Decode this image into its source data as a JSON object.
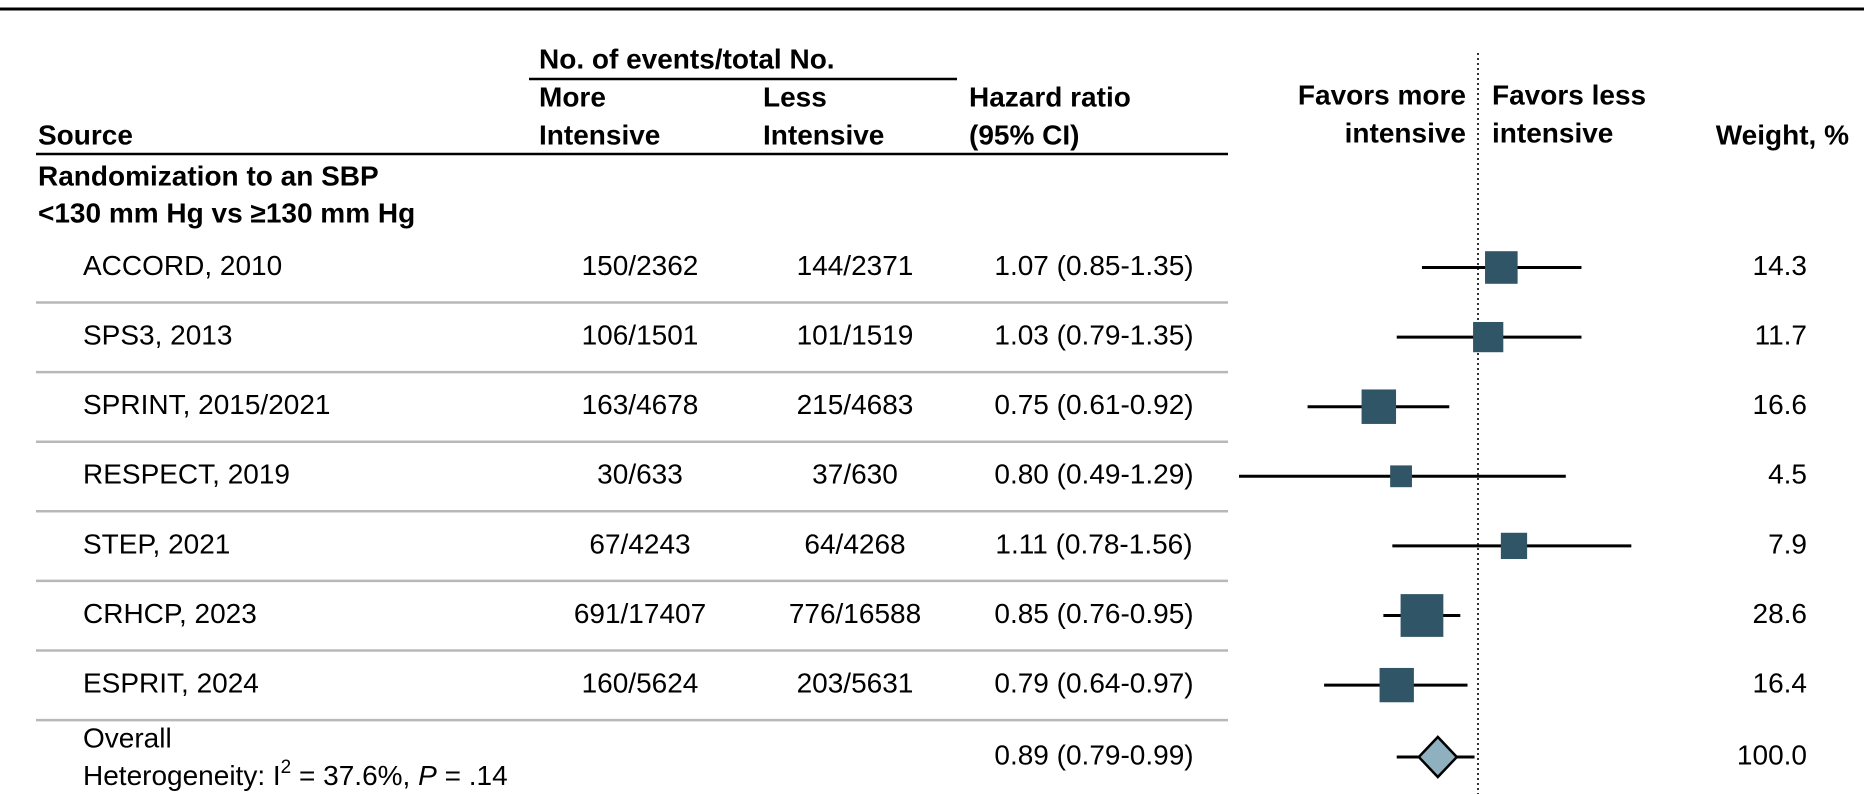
{
  "header": {
    "source": "Source",
    "events_group": "No. of events/total No.",
    "more": [
      "More",
      "Intensive"
    ],
    "less": [
      "Less",
      "Intensive"
    ],
    "hr": [
      "Hazard ratio",
      "(95% CI)"
    ],
    "favors_more": [
      "Favors more",
      "intensive"
    ],
    "favors_less": [
      "Favors less",
      "intensive"
    ],
    "weight": "Weight, %"
  },
  "section": [
    "Randomization to an SBP",
    "<130 mm Hg vs ≥130 mm Hg"
  ],
  "studies": [
    {
      "source": "ACCORD, 2010",
      "more": "150/2362",
      "less": "144/2371",
      "hr_label": "1.07 (0.85-1.35)",
      "hr": 1.07,
      "lo": 0.85,
      "hi": 1.35,
      "weight": 14.3
    },
    {
      "source": "SPS3, 2013",
      "more": "106/1501",
      "less": "101/1519",
      "hr_label": "1.03 (0.79-1.35)",
      "hr": 1.03,
      "lo": 0.79,
      "hi": 1.35,
      "weight": 11.7
    },
    {
      "source": "SPRINT, 2015/2021",
      "more": "163/4678",
      "less": "215/4683",
      "hr_label": "0.75 (0.61-0.92)",
      "hr": 0.75,
      "lo": 0.61,
      "hi": 0.92,
      "weight": 16.6
    },
    {
      "source": "RESPECT, 2019",
      "more": "30/633",
      "less": "37/630",
      "hr_label": "0.80 (0.49-1.29)",
      "hr": 0.8,
      "lo": 0.49,
      "hi": 1.29,
      "weight": 4.5
    },
    {
      "source": "STEP, 2021",
      "more": "67/4243",
      "less": "64/4268",
      "hr_label": "1.11 (0.78-1.56)",
      "hr": 1.11,
      "lo": 0.78,
      "hi": 1.56,
      "weight": 7.9
    },
    {
      "source": "CRHCP, 2023",
      "more": "691/17407",
      "less": "776/16588",
      "hr_label": "0.85 (0.76-0.95)",
      "hr": 0.85,
      "lo": 0.76,
      "hi": 0.95,
      "weight": 28.6
    },
    {
      "source": "ESPRIT, 2024",
      "more": "160/5624",
      "less": "203/5631",
      "hr_label": "0.79 (0.64-0.97)",
      "hr": 0.79,
      "lo": 0.64,
      "hi": 0.97,
      "weight": 16.4
    }
  ],
  "overall": {
    "source": "Overall",
    "heterogeneity": {
      "prefix": "Heterogeneity: I",
      "sup": "2",
      "mid": " = 37.6%, ",
      "p": "P",
      "suffix": " = .14"
    },
    "hr_label": "0.89 (0.79-0.99)",
    "hr": 0.89,
    "lo": 0.79,
    "hi": 0.99,
    "weight": 100,
    "weight_label": "100.0"
  },
  "forest": {
    "scale": "log",
    "xlim": [
      0.5,
      2
    ],
    "reference": 1,
    "square_color": "#2f5566",
    "diamond_color": "#8fb0bf"
  }
}
